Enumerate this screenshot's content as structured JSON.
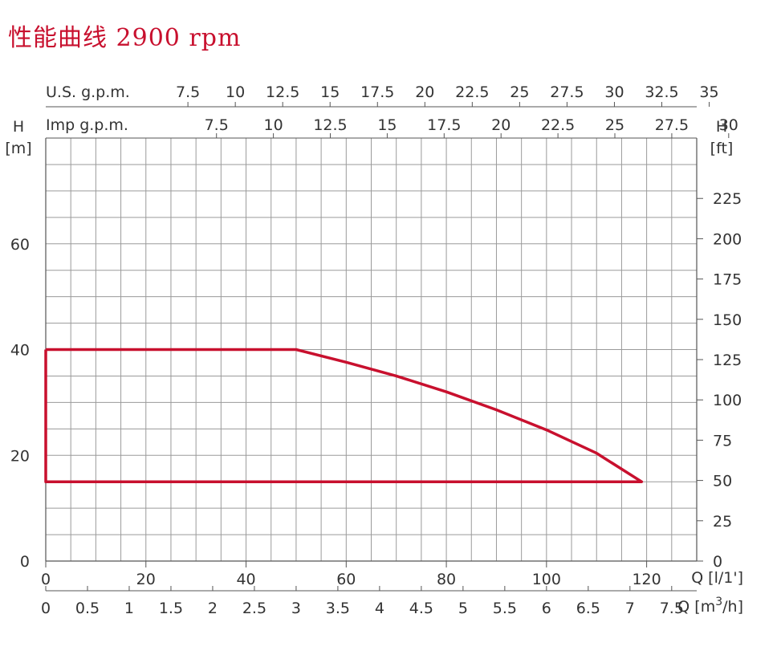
{
  "title": "性能曲线 2900 rpm",
  "chart_data": {
    "type": "area",
    "title": "性能曲线 2900 rpm",
    "curve_color": "#c8102e",
    "grid": true,
    "axes": {
      "x_bottom_flow_lpm": {
        "label": "Q [l/1']",
        "range": [
          0,
          130
        ],
        "ticks": [
          0,
          20,
          40,
          60,
          80,
          100,
          120
        ]
      },
      "x_bottom_flow_m3h": {
        "label": "Q [m³/h]",
        "ticks": [
          "0",
          "0.5",
          "1",
          "1.5",
          "2",
          "2.5",
          "3",
          "3.5",
          "4",
          "4.5",
          "5",
          "5.5",
          "6",
          "6.5",
          "7",
          "7.5"
        ]
      },
      "x_top_us_gpm": {
        "label": "U.S. g.p.m.",
        "ticks": [
          "7.5",
          "10",
          "12.5",
          "15",
          "17.5",
          "20",
          "22.5",
          "25",
          "27.5",
          "30",
          "32.5",
          "35"
        ]
      },
      "x_top_imp_gpm": {
        "label": "Imp g.p.m.",
        "ticks": [
          "7.5",
          "10",
          "12.5",
          "15",
          "17.5",
          "20",
          "22.5",
          "25",
          "27.5",
          "30"
        ]
      },
      "y_left_m": {
        "label_top": "H",
        "label_unit": "[m]",
        "range": [
          0,
          80
        ],
        "ticks": [
          0,
          20,
          40,
          60
        ]
      },
      "y_right_ft": {
        "label_top": "H",
        "label_unit": "[ft]",
        "ticks": [
          0,
          25,
          50,
          75,
          100,
          125,
          150,
          175,
          200,
          225
        ]
      }
    },
    "series": [
      {
        "x": [
          0,
          50,
          60,
          70,
          80,
          90,
          100,
          110,
          119,
          0,
          0
        ],
        "y": [
          40,
          40,
          37.6,
          35,
          32,
          28.6,
          24.8,
          20.4,
          15,
          15,
          40
        ]
      }
    ]
  }
}
